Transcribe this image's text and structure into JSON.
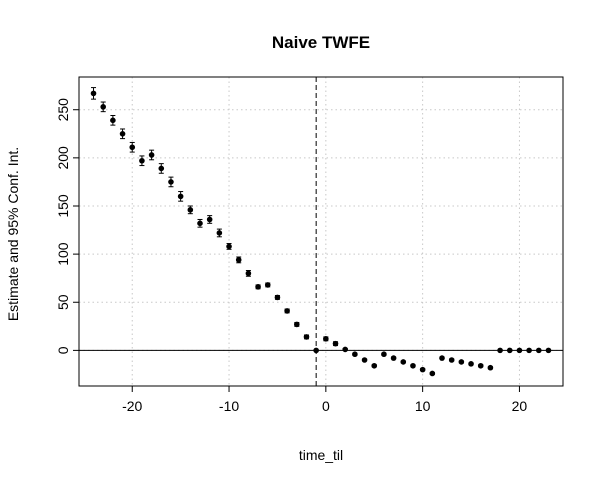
{
  "chart_data": {
    "type": "scatter",
    "title": "Naive TWFE",
    "xlabel": "time_til",
    "ylabel": "Estimate and 95% Conf. Int.",
    "xlim": [
      -25.5,
      24.5
    ],
    "ylim": [
      -37,
      284
    ],
    "xticks": [
      -20,
      -10,
      0,
      10,
      20
    ],
    "yticks": [
      0,
      50,
      100,
      150,
      200,
      250
    ],
    "grid": true,
    "reference_lines": {
      "hline": 0,
      "vline": -1
    },
    "series": [
      {
        "x": [
          -24,
          -23,
          -22,
          -21,
          -20,
          -19,
          -18,
          -17,
          -16,
          -15,
          -14,
          -13,
          -12,
          -11,
          -10,
          -9,
          -8,
          -7,
          -6,
          -5,
          -4,
          -3,
          -2,
          -1,
          0,
          1,
          2,
          3,
          4,
          5,
          6,
          7,
          8,
          9,
          10,
          11,
          12,
          13,
          14,
          15,
          16,
          17,
          18,
          19,
          20,
          21,
          22,
          23
        ],
        "y": [
          267,
          253,
          239,
          225,
          211,
          197,
          203,
          189,
          175,
          160,
          146,
          132,
          136,
          122,
          108,
          94,
          80,
          66,
          68,
          55,
          41,
          27,
          14,
          0,
          12,
          7,
          1,
          -4,
          -10,
          -16,
          -4,
          -8,
          -12,
          -16,
          -20,
          -24,
          -8,
          -10,
          -12,
          -14,
          -16,
          -18,
          0,
          0,
          0,
          0,
          0,
          0
        ],
        "ci_low": [
          261,
          248,
          234,
          220,
          206,
          192,
          198,
          184,
          170,
          155,
          142,
          128,
          132,
          118,
          105,
          91,
          77,
          64,
          66,
          53,
          39,
          25,
          12,
          0,
          10,
          5,
          0,
          -5,
          -11,
          -17,
          -5,
          -9,
          -13,
          -17,
          -21,
          -25,
          -9,
          -11,
          -13,
          -15,
          -17,
          -19,
          0,
          0,
          0,
          0,
          0,
          0
        ],
        "ci_high": [
          273,
          258,
          244,
          230,
          216,
          202,
          208,
          194,
          180,
          165,
          150,
          136,
          140,
          126,
          111,
          97,
          83,
          68,
          70,
          57,
          43,
          29,
          16,
          0,
          14,
          9,
          2,
          -3,
          -9,
          -15,
          -3,
          -7,
          -11,
          -15,
          -19,
          -23,
          -7,
          -9,
          -11,
          -13,
          -15,
          -17,
          0,
          0,
          0,
          0,
          0,
          0
        ]
      }
    ]
  }
}
